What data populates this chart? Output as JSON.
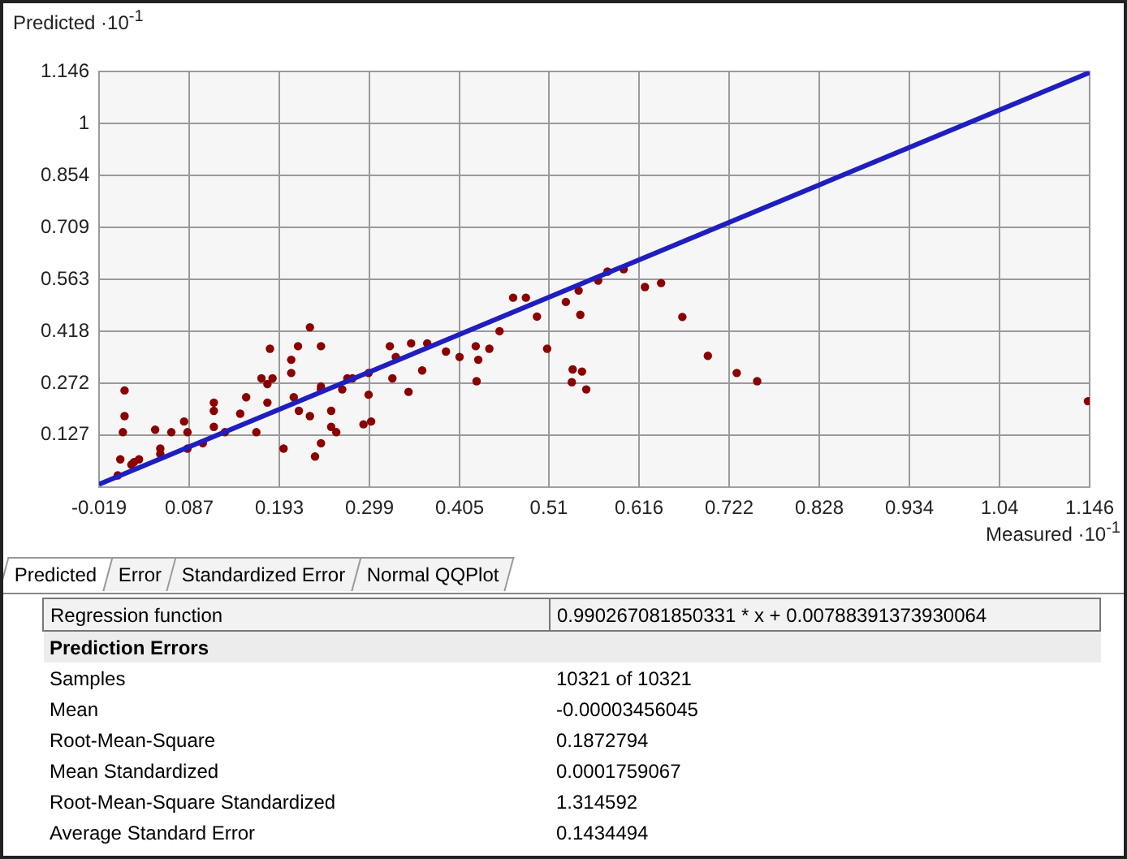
{
  "chart_data": {
    "type": "scatter",
    "xlabel": "Measured ·10$^{-1}$",
    "ylabel": "Predicted ·10$^{-1}$",
    "xlim": [
      -0.019,
      1.146
    ],
    "xticks": [
      -0.019,
      0.087,
      0.193,
      0.299,
      0.405,
      0.51,
      0.616,
      0.722,
      0.828,
      0.934,
      1.04,
      1.146
    ],
    "ylim": [
      -0.019,
      1.146
    ],
    "yticks": [
      0.127,
      0.272,
      0.418,
      0.563,
      0.709,
      0.854,
      1,
      1.146
    ],
    "grid": true,
    "legend": false,
    "series": [
      {
        "type": "scatter",
        "color": "#8b0000",
        "marker": "circle",
        "x": [
          0.011,
          0.011,
          0.009,
          0.006,
          0.003,
          0.019,
          0.028,
          0.047,
          0.053,
          0.066,
          0.085,
          0.081,
          0.103,
          0.116,
          0.129,
          0.154,
          0.166,
          0.172,
          0.182,
          0.185,
          0.198,
          0.207,
          0.215,
          0.207,
          0.216,
          0.229,
          0.235,
          0.242,
          0.242,
          0.254,
          0.26,
          0.242,
          0.267,
          0.279,
          0.298,
          0.292,
          0.301,
          0.298,
          0.323,
          0.33,
          0.326,
          0.345,
          0.348,
          0.361,
          0.367,
          0.389,
          0.405,
          0.424,
          0.427,
          0.425,
          0.44,
          0.452,
          0.468,
          0.483,
          0.496,
          0.508,
          0.022,
          0.053,
          0.085,
          0.116,
          0.147,
          0.179,
          0.21,
          0.242,
          0.273,
          0.229,
          0.254,
          0.116,
          0.179,
          0.53,
          0.545,
          0.547,
          0.568,
          0.579,
          0.598,
          0.623,
          0.642,
          0.667,
          0.697,
          0.731,
          0.755,
          1.144,
          0.538,
          0.549,
          0.537,
          0.554
        ],
        "values": [
          0.252,
          0.18,
          0.135,
          0.059,
          0.014,
          0.044,
          0.059,
          0.142,
          0.074,
          0.135,
          0.089,
          0.165,
          0.104,
          0.195,
          0.135,
          0.233,
          0.135,
          0.286,
          0.369,
          0.286,
          0.089,
          0.338,
          0.376,
          0.301,
          0.195,
          0.429,
          0.067,
          0.376,
          0.104,
          0.15,
          0.135,
          0.255,
          0.255,
          0.286,
          0.301,
          0.157,
          0.165,
          0.24,
          0.376,
          0.346,
          0.286,
          0.248,
          0.384,
          0.308,
          0.384,
          0.361,
          0.346,
          0.376,
          0.338,
          0.278,
          0.369,
          0.418,
          0.512,
          0.512,
          0.459,
          0.369,
          0.051,
          0.089,
          0.135,
          0.15,
          0.187,
          0.218,
          0.233,
          0.263,
          0.286,
          0.18,
          0.195,
          0.218,
          0.27,
          0.5,
          0.532,
          0.464,
          0.56,
          0.585,
          0.592,
          0.542,
          0.553,
          0.458,
          0.349,
          0.301,
          0.278,
          0.222,
          0.311,
          0.305,
          0.275,
          0.255
        ]
      },
      {
        "type": "line",
        "color": "#1f1fbf",
        "marker": "none",
        "x": [
          -0.019,
          1.146
        ],
        "values": [
          -0.011,
          1.143
        ]
      }
    ],
    "annotations": [
      "Predicted",
      "Error",
      "Standardized Error",
      "Normal QQPlot",
      "Regression function",
      "0.990267081850331 * x + 0.00788391373930064",
      "Prediction Errors",
      "Samples",
      "10321 of 10321",
      "Mean",
      "-0.00003456045",
      "Root-Mean-Square",
      "0.1872794",
      "Mean Standardized",
      "0.0001759067",
      "Root-Mean-Square Standardized",
      "1.314592",
      "Average Standard Error",
      "0.1434494"
    ]
  }
}
